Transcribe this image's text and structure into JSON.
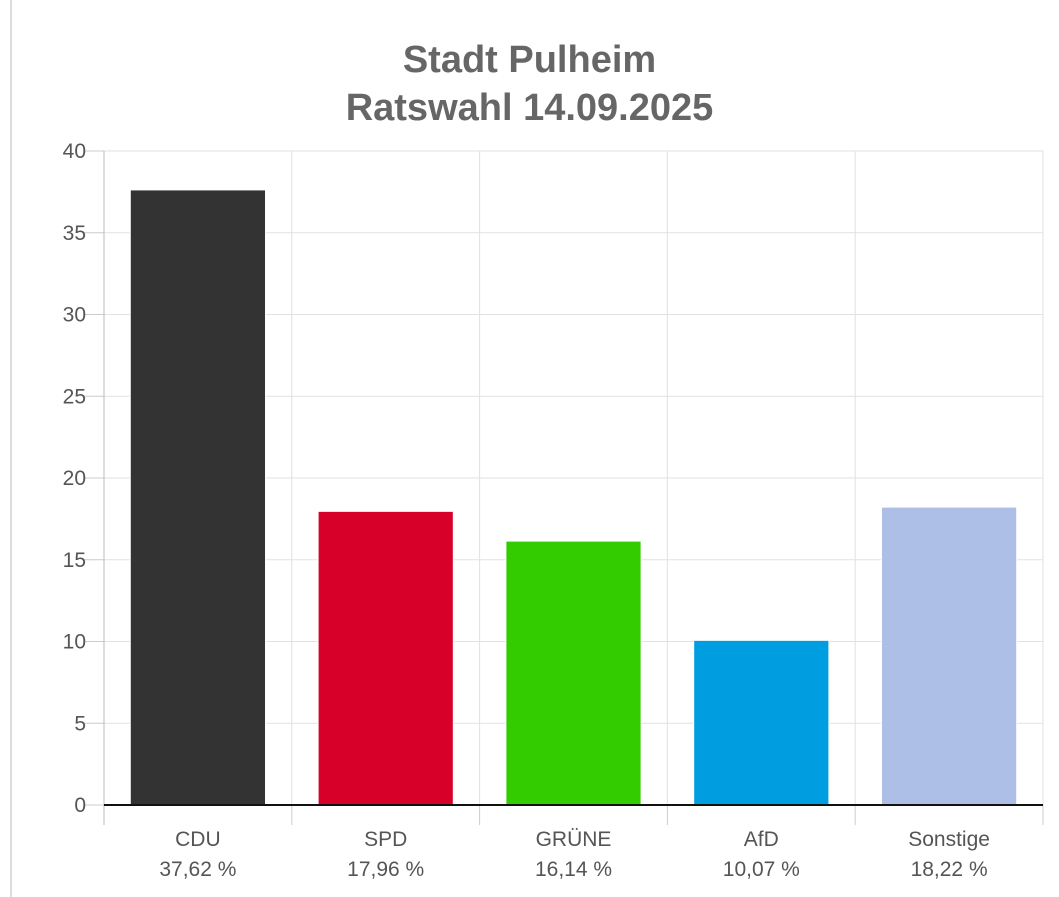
{
  "chart_data": {
    "type": "bar",
    "title": "Stadt Pulheim",
    "subtitle": "Ratswahl 14.09.2025",
    "categories": [
      "CDU",
      "SPD",
      "GRÜNE",
      "AfD",
      "Sonstige"
    ],
    "value_labels": [
      "37,62 %",
      "17,96 %",
      "16,14 %",
      "10,07 %",
      "18,22 %"
    ],
    "values": [
      37.62,
      17.96,
      16.14,
      10.07,
      18.22
    ],
    "colors": [
      "#333333",
      "#d70029",
      "#33cc00",
      "#009ee0",
      "#adbfe6"
    ],
    "ylim": [
      0,
      40
    ],
    "yticks": [
      0,
      5,
      10,
      15,
      20,
      25,
      30,
      35,
      40
    ],
    "grid": true,
    "xlabel": "",
    "ylabel": ""
  }
}
